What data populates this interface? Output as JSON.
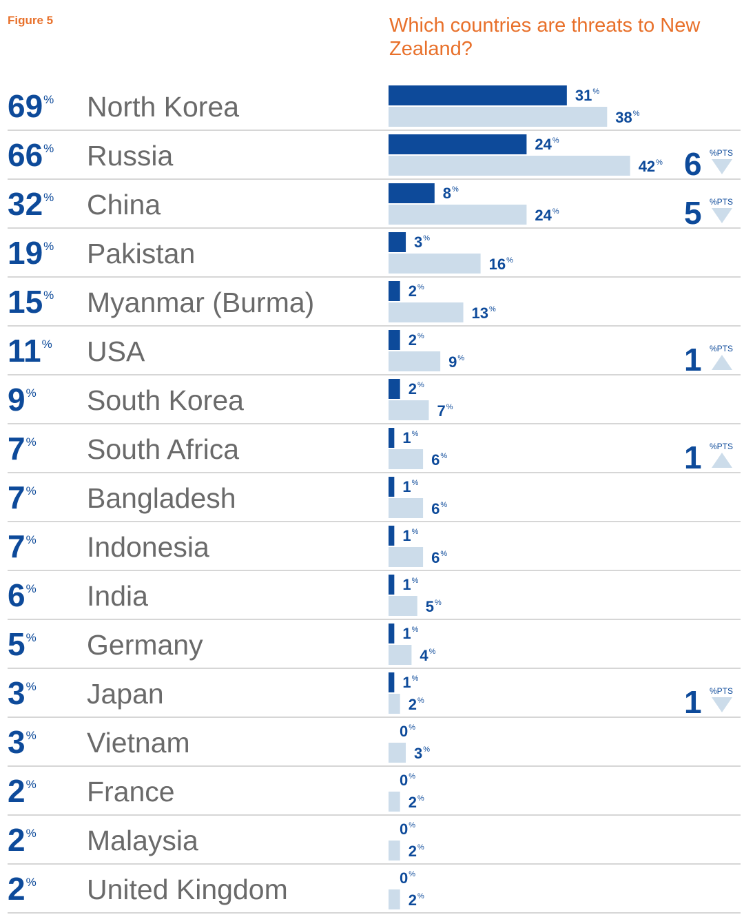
{
  "figure_label": "Figure 5",
  "title": "Which countries are threats to New Zealand?",
  "colors": {
    "title": "#e8702a",
    "first_choice": "#0d4a9a",
    "mentions": "#ccdcea",
    "total": "#0d4a9a",
    "country": "#6a6a6a",
    "divider": "#c9c9c9"
  },
  "chart_data": {
    "type": "bar",
    "title": "Which countries are threats to New Zealand?",
    "orientation": "horizontal",
    "categories": [
      "North Korea",
      "Russia",
      "China",
      "Pakistan",
      "Myanmar (Burma)",
      "USA",
      "South Korea",
      "South Africa",
      "Bangladesh",
      "Indonesia",
      "India",
      "Germany",
      "Japan",
      "Vietnam",
      "France",
      "Malaysia",
      "United Kingdom"
    ],
    "totals": [
      69,
      66,
      32,
      19,
      15,
      11,
      9,
      7,
      7,
      7,
      6,
      5,
      3,
      3,
      2,
      2,
      2
    ],
    "series": [
      {
        "values": [
          31,
          24,
          8,
          3,
          2,
          2,
          2,
          1,
          1,
          1,
          1,
          1,
          1,
          0,
          0,
          0,
          0
        ]
      },
      {
        "values": [
          38,
          42,
          24,
          16,
          13,
          9,
          7,
          6,
          6,
          6,
          5,
          4,
          2,
          3,
          2,
          2,
          2
        ]
      }
    ],
    "changes": [
      null,
      {
        "value": 6,
        "direction": "down",
        "unit": "%PTS"
      },
      {
        "value": 5,
        "direction": "down",
        "unit": "%PTS"
      },
      null,
      null,
      {
        "value": 1,
        "direction": "up",
        "unit": "%PTS"
      },
      null,
      {
        "value": 1,
        "direction": "up",
        "unit": "%PTS"
      },
      null,
      null,
      null,
      null,
      {
        "value": 1,
        "direction": "down",
        "unit": "%PTS"
      },
      null,
      null,
      null,
      null
    ],
    "percent_symbol": "%",
    "xlim": [
      0,
      42
    ]
  }
}
